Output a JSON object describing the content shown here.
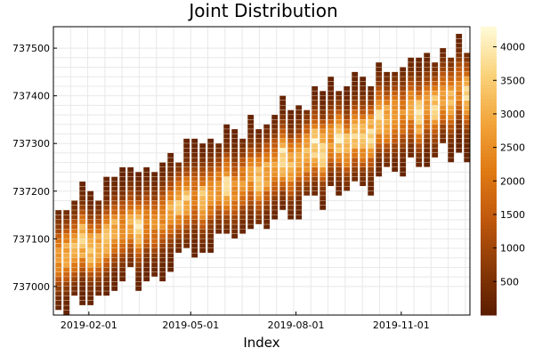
{
  "chart_data": {
    "type": "heatmap",
    "title": "Joint Distribution",
    "xlabel": "Index",
    "ylabel": "",
    "x_ticks": [
      "2019-02-01",
      "2019-05-01",
      "2019-08-01",
      "2019-11-01"
    ],
    "x_range": [
      "2019-01-01",
      "2019-12-31"
    ],
    "y_ticks": [
      737000,
      737100,
      737200,
      737300,
      737400,
      737500
    ],
    "ylim": [
      736940,
      737545
    ],
    "colorbar": {
      "ticks": [
        500,
        1000,
        1500,
        2000,
        2500,
        3000,
        3500,
        4000
      ],
      "range": [
        0,
        4300
      ],
      "colormap": "heat",
      "colors": [
        "#5a1c00",
        "#8a3a06",
        "#c0580d",
        "#e07a14",
        "#f2a43a",
        "#fad27a",
        "#fffbd9"
      ]
    },
    "columns_note": "weekly joint-density columns; column centre rises roughly linearly from ~737060 in Jan to ~737420 in Dec with a spread of about +/-110",
    "centre_start": 737060,
    "centre_end": 737420,
    "grid": true,
    "legend": "colorbar-right"
  }
}
